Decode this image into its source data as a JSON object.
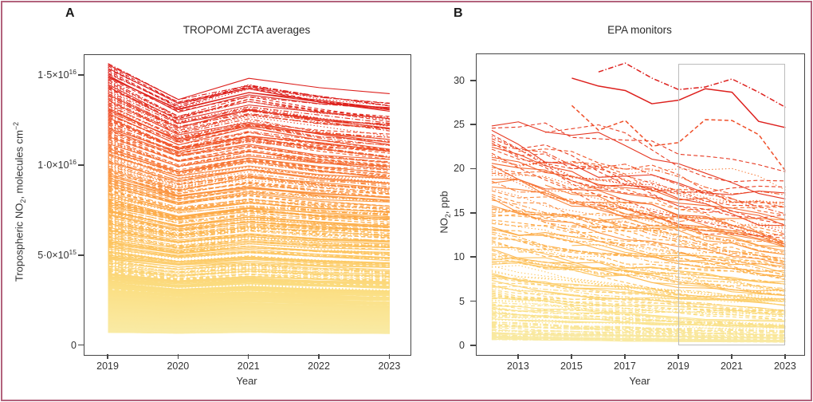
{
  "figure": {
    "border_color": "#b2627c",
    "description": "Two-panel line figure comparing tropospheric NO2 trends: TROPOMI satellite ZCTA averages (2019-2023) and ground EPA monitors (2012-2023). Line color encodes NO2 level from pale yellow (low) to red (high); no legend shown."
  },
  "chart_data": [
    {
      "panel": "A",
      "type": "line",
      "title": "TROPOMI ZCTA averages",
      "xlabel": "Year",
      "ylabel_parts": [
        {
          "t": "Tropospheric NO"
        },
        {
          "sub": "2"
        },
        {
          "t": ", molecules cm"
        },
        {
          "sup": "−2"
        }
      ],
      "x_ticks": [
        2019,
        2020,
        2021,
        2022,
        2023
      ],
      "y_ticks": [
        {
          "value": 15000000000000000,
          "base": "1·5×10",
          "exp": "16"
        },
        {
          "value": 10000000000000000,
          "base": "1·0×10",
          "exp": "16"
        },
        {
          "value": 5000000000000000,
          "base": "5·0×10",
          "exp": "15"
        },
        {
          "value": 0,
          "base": "0"
        }
      ],
      "xlim": [
        2018.66,
        2023.29
      ],
      "ylim": [
        -500000000000000,
        16160000000000000
      ],
      "grid": false,
      "legend_position": "none",
      "color_encoding": "pale yellow = low NO2 to red = high NO2",
      "ensemble": {
        "n_lines": 430,
        "x_years": [
          2019,
          2020,
          2021,
          2022,
          2023
        ],
        "value_min_1e15": 0.75,
        "value_max_1e15": 15.7,
        "density_power": 1.9,
        "trend_rel_2019": {
          "y2020": 0.9,
          "y2021": 0.955,
          "y2022": 0.913,
          "y2023": 0.885
        },
        "seed": 20190523,
        "dash_styles": [
          "solid",
          "dashed",
          "dotted",
          "dashdot"
        ],
        "colormap_stops": [
          [
            0,
            "#f9eba6"
          ],
          [
            0.18,
            "#fbdf84"
          ],
          [
            0.35,
            "#fdc45f"
          ],
          [
            0.52,
            "#fda845"
          ],
          [
            0.68,
            "#f9823a"
          ],
          [
            0.84,
            "#ef4e28"
          ],
          [
            1,
            "#dd201d"
          ]
        ],
        "note": "hundreds of ZCTA lines dip in 2020, partly rebound in 2021, then decline through 2023"
      },
      "envelope": {
        "top_line_1e15": [
          15.7,
          13.5,
          14.3,
          13.8,
          13.2
        ],
        "bottom_solid_band_top_1e15": 2.0
      }
    },
    {
      "panel": "B",
      "type": "line",
      "title": "EPA monitors",
      "xlabel": "Year",
      "ylabel_parts": [
        {
          "t": "NO"
        },
        {
          "sub": "2"
        },
        {
          "t": ", ppb"
        }
      ],
      "x_ticks": [
        2013,
        2015,
        2017,
        2019,
        2021,
        2023
      ],
      "y_ticks": [
        {
          "value": 30,
          "base": "30"
        },
        {
          "value": 25,
          "base": "25"
        },
        {
          "value": 20,
          "base": "20"
        },
        {
          "value": 15,
          "base": "15"
        },
        {
          "value": 10,
          "base": "10"
        },
        {
          "value": 5,
          "base": "5"
        },
        {
          "value": 0,
          "base": "0"
        }
      ],
      "xlim": [
        2011.42,
        2023.69
      ],
      "ylim": [
        -1.0,
        33.05
      ],
      "grid": false,
      "legend_position": "none",
      "color_encoding": "pale yellow = low NO2 to red = high NO2",
      "highlight_box": {
        "x0": 2019,
        "x1": 2022.95,
        "y0": 0.15,
        "y1": 31.85,
        "color": "#bcbcbc"
      },
      "ensemble": {
        "n_lines": 150,
        "x_start": 2012,
        "x_end": 2023,
        "value_min_ppb": 0.7,
        "value_max_ppb": 25,
        "density_power": 1.5,
        "annual_decline_mean": 0.958,
        "noise_sd": 0.055,
        "seed": 20231107,
        "dash_styles": [
          "solid",
          "dashed",
          "dotted",
          "dashdot"
        ],
        "colormap_stops": [
          [
            0,
            "#f9eba6"
          ],
          [
            0.18,
            "#fbdf84"
          ],
          [
            0.35,
            "#fdc45f"
          ],
          [
            0.52,
            "#fda845"
          ],
          [
            0.68,
            "#f9823a"
          ],
          [
            0.84,
            "#ef4e28"
          ],
          [
            1,
            "#dd201d"
          ]
        ],
        "note": "monitor NO2 declines roughly 40% from 2012 to 2023 with year-to-year variability"
      },
      "notable_series": [
        {
          "name": "highest-monitor-dashdot",
          "style": "dashdot",
          "color": "#dd201d",
          "x": [
            2016,
            2017,
            2018,
            2019,
            2020,
            2021,
            2022,
            2023
          ],
          "y": [
            31.0,
            32.0,
            30.3,
            29.0,
            29.3,
            30.2,
            28.7,
            27.0
          ]
        },
        {
          "name": "high-monitor-solid",
          "style": "solid",
          "color": "#dd201d",
          "x": [
            2015,
            2016,
            2017,
            2018,
            2019,
            2020,
            2021,
            2022,
            2023
          ],
          "y": [
            30.3,
            29.4,
            28.9,
            27.4,
            27.8,
            29.1,
            28.7,
            25.4,
            24.7
          ]
        },
        {
          "name": "high-monitor-dashed",
          "style": "dashed",
          "color": "#ef4e28",
          "x": [
            2015,
            2016,
            2017,
            2018,
            2019,
            2020,
            2021,
            2022,
            2023
          ],
          "y": [
            27.2,
            24.4,
            25.5,
            22.6,
            23.0,
            25.6,
            25.5,
            23.9,
            19.8
          ]
        }
      ]
    }
  ]
}
